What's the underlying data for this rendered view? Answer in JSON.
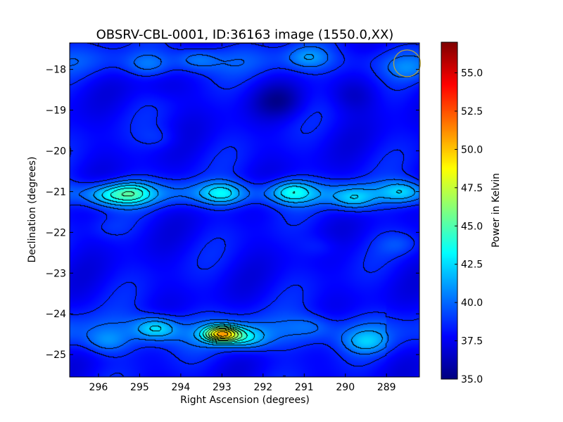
{
  "chart_data": {
    "type": "heatmap",
    "title": "OBSRV-CBL-0001, ID:36163 image (1550.0,XX)",
    "xlabel": "Right Ascension (degrees)",
    "ylabel": "Declination (degrees)",
    "colorbar_label": "Power in Kelvin",
    "xlim": [
      296.7,
      288.2
    ],
    "ylim": [
      -25.55,
      -17.35
    ],
    "x_ticks": [
      296,
      295,
      294,
      293,
      292,
      291,
      290,
      289
    ],
    "x_tick_labels": [
      "296",
      "295",
      "294",
      "293",
      "292",
      "291",
      "290",
      "289"
    ],
    "y_ticks": [
      -18,
      -19,
      -20,
      -21,
      -22,
      -23,
      -24,
      -25
    ],
    "y_tick_labels": [
      "−18",
      "−19",
      "−20",
      "−21",
      "−22",
      "−23",
      "−24",
      "−25"
    ],
    "colorbar_range": [
      35.0,
      57.0
    ],
    "colorbar_ticks": [
      35.0,
      37.5,
      40.0,
      42.5,
      45.0,
      47.5,
      50.0,
      52.5,
      55.0
    ],
    "colorbar_tick_labels": [
      "35.0",
      "37.5",
      "40.0",
      "42.5",
      "45.0",
      "47.5",
      "50.0",
      "52.5",
      "55.0"
    ],
    "colormap": "jet",
    "contours": true,
    "grid": false,
    "background_level": 37.8,
    "sources": [
      {
        "ra": 293.0,
        "dec": -24.5,
        "peak": 56.5
      },
      {
        "ra": 294.6,
        "dec": -24.35,
        "peak": 45.0
      },
      {
        "ra": 292.4,
        "dec": -24.6,
        "peak": 44.0
      },
      {
        "ra": 289.5,
        "dec": -24.7,
        "peak": 42.0
      },
      {
        "ra": 295.8,
        "dec": -24.7,
        "peak": 41.0
      },
      {
        "ra": 290.8,
        "dec": -24.3,
        "peak": 40.0
      },
      {
        "ra": 295.2,
        "dec": -21.05,
        "peak": 45.0
      },
      {
        "ra": 293.0,
        "dec": -21.05,
        "peak": 43.5
      },
      {
        "ra": 291.3,
        "dec": -21.0,
        "peak": 44.0
      },
      {
        "ra": 289.8,
        "dec": -21.2,
        "peak": 43.0
      },
      {
        "ra": 288.6,
        "dec": -21.0,
        "peak": 42.5
      },
      {
        "ra": 295.8,
        "dec": -21.1,
        "peak": 42.5
      },
      {
        "ra": 294.8,
        "dec": -17.9,
        "peak": 40.5
      },
      {
        "ra": 293.6,
        "dec": -17.75,
        "peak": 41.5
      },
      {
        "ra": 290.9,
        "dec": -17.7,
        "peak": 41.5
      },
      {
        "ra": 288.5,
        "dec": -18.0,
        "peak": 40.0
      },
      {
        "ra": 294.5,
        "dec": -19.7,
        "peak": 39.5
      },
      {
        "ra": 290.6,
        "dec": -22.35,
        "peak": 39.5
      },
      {
        "ra": 288.7,
        "dec": -22.3,
        "peak": 40.0
      },
      {
        "ra": 295.7,
        "dec": -21.9,
        "peak": 39.0
      }
    ],
    "troughs": [
      {
        "ra": 291.6,
        "dec": -18.8,
        "depth": 36.0
      },
      {
        "ra": 289.8,
        "dec": -18.65,
        "depth": 36.5
      },
      {
        "ra": 294.4,
        "dec": -18.4,
        "depth": 37.0
      }
    ],
    "beam_marker": {
      "ra": 288.5,
      "dec": -17.85,
      "color": "#b5a642"
    }
  }
}
